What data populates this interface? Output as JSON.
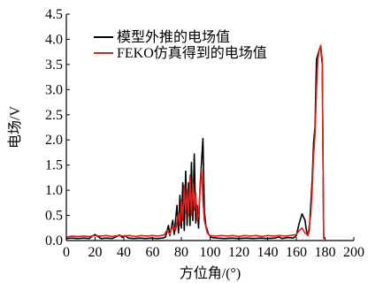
{
  "chart_data": {
    "type": "line",
    "title": "",
    "xlabel": "方位角/(°)",
    "ylabel": "电场/V",
    "xlim": [
      0,
      200
    ],
    "ylim": [
      0,
      4.5
    ],
    "x_ticks": [
      0,
      20,
      40,
      60,
      80,
      100,
      120,
      140,
      160,
      180,
      200
    ],
    "y_ticks": [
      0.0,
      0.5,
      1.0,
      1.5,
      2.0,
      2.5,
      3.0,
      3.5,
      4.0,
      4.5
    ],
    "y_tick_labels": [
      "0.0",
      "0.5",
      "1.0",
      "1.5",
      "2.0",
      "2.5",
      "3.0",
      "3.5",
      "4.0",
      "4.5"
    ],
    "grid": false,
    "legend_position": "top-left",
    "series": [
      {
        "name": "模型外推的电场值",
        "color": "#000000",
        "points": [
          [
            0,
            0.04
          ],
          [
            4,
            0.05
          ],
          [
            8,
            0.04
          ],
          [
            12,
            0.05
          ],
          [
            16,
            0.04
          ],
          [
            18,
            0.09
          ],
          [
            20,
            0.12
          ],
          [
            22,
            0.08
          ],
          [
            24,
            0.04
          ],
          [
            28,
            0.05
          ],
          [
            32,
            0.04
          ],
          [
            35,
            0.08
          ],
          [
            37,
            0.11
          ],
          [
            39,
            0.06
          ],
          [
            41,
            0.1
          ],
          [
            43,
            0.05
          ],
          [
            47,
            0.04
          ],
          [
            51,
            0.05
          ],
          [
            55,
            0.04
          ],
          [
            59,
            0.05
          ],
          [
            63,
            0.04
          ],
          [
            67,
            0.05
          ],
          [
            69,
            0.07
          ],
          [
            71,
            0.3
          ],
          [
            72,
            0.1
          ],
          [
            74,
            0.4
          ],
          [
            75,
            0.12
          ],
          [
            77,
            0.7
          ],
          [
            78,
            0.15
          ],
          [
            79,
            0.9
          ],
          [
            80,
            0.25
          ],
          [
            81,
            1.15
          ],
          [
            82,
            0.2
          ],
          [
            83,
            1.38
          ],
          [
            84,
            0.3
          ],
          [
            85,
            1.15
          ],
          [
            86,
            0.3
          ],
          [
            87,
            1.55
          ],
          [
            88,
            0.4
          ],
          [
            89,
            1.72
          ],
          [
            90,
            0.35
          ],
          [
            91,
            0.7
          ],
          [
            92,
            0.25
          ],
          [
            93,
            1.05
          ],
          [
            95,
            2.03
          ],
          [
            96,
            0.6
          ],
          [
            97,
            0.3
          ],
          [
            99,
            0.12
          ],
          [
            101,
            0.06
          ],
          [
            105,
            0.05
          ],
          [
            110,
            0.04
          ],
          [
            115,
            0.05
          ],
          [
            120,
            0.04
          ],
          [
            125,
            0.05
          ],
          [
            130,
            0.04
          ],
          [
            135,
            0.05
          ],
          [
            140,
            0.04
          ],
          [
            145,
            0.05
          ],
          [
            148,
            0.07
          ],
          [
            150,
            0.04
          ],
          [
            154,
            0.06
          ],
          [
            158,
            0.05
          ],
          [
            160,
            0.1
          ],
          [
            162,
            0.35
          ],
          [
            164,
            0.53
          ],
          [
            166,
            0.4
          ],
          [
            167,
            0.2
          ],
          [
            168,
            0.1
          ],
          [
            169,
            0.2
          ],
          [
            171,
            1.2
          ],
          [
            172,
            1.95
          ],
          [
            173,
            2.25
          ],
          [
            174,
            3.6
          ],
          [
            175,
            3.7
          ],
          [
            176,
            3.8
          ],
          [
            177,
            3.83
          ],
          [
            178,
            3.5
          ],
          [
            179,
            0.03
          ]
        ]
      },
      {
        "name": "FEKO仿真得到的电场值",
        "color": "#e0201c",
        "points": [
          [
            0,
            0.07
          ],
          [
            4,
            0.09
          ],
          [
            8,
            0.08
          ],
          [
            12,
            0.09
          ],
          [
            16,
            0.08
          ],
          [
            20,
            0.1
          ],
          [
            24,
            0.09
          ],
          [
            28,
            0.1
          ],
          [
            32,
            0.08
          ],
          [
            36,
            0.1
          ],
          [
            40,
            0.09
          ],
          [
            44,
            0.1
          ],
          [
            48,
            0.08
          ],
          [
            52,
            0.1
          ],
          [
            56,
            0.09
          ],
          [
            60,
            0.1
          ],
          [
            64,
            0.09
          ],
          [
            68,
            0.11
          ],
          [
            70,
            0.2
          ],
          [
            72,
            0.12
          ],
          [
            74,
            0.3
          ],
          [
            76,
            0.2
          ],
          [
            78,
            0.55
          ],
          [
            79,
            0.3
          ],
          [
            80,
            0.8
          ],
          [
            81,
            0.4
          ],
          [
            82,
            1.1
          ],
          [
            83,
            0.55
          ],
          [
            84,
            1.0
          ],
          [
            85,
            0.5
          ],
          [
            86,
            1.3
          ],
          [
            87,
            0.5
          ],
          [
            88,
            1.15
          ],
          [
            89,
            0.6
          ],
          [
            90,
            0.95
          ],
          [
            91,
            0.4
          ],
          [
            92,
            0.5
          ],
          [
            93,
            1.0
          ],
          [
            94,
            1.42
          ],
          [
            95,
            0.8
          ],
          [
            96,
            0.4
          ],
          [
            98,
            0.15
          ],
          [
            100,
            0.1
          ],
          [
            104,
            0.09
          ],
          [
            108,
            0.1
          ],
          [
            112,
            0.09
          ],
          [
            116,
            0.1
          ],
          [
            120,
            0.08
          ],
          [
            124,
            0.1
          ],
          [
            128,
            0.09
          ],
          [
            132,
            0.1
          ],
          [
            136,
            0.08
          ],
          [
            140,
            0.1
          ],
          [
            144,
            0.09
          ],
          [
            148,
            0.1
          ],
          [
            152,
            0.09
          ],
          [
            156,
            0.1
          ],
          [
            160,
            0.12
          ],
          [
            162,
            0.2
          ],
          [
            164,
            0.25
          ],
          [
            166,
            0.15
          ],
          [
            168,
            0.1
          ],
          [
            170,
            0.5
          ],
          [
            171,
            1.0
          ],
          [
            172,
            1.7
          ],
          [
            173,
            2.1
          ],
          [
            174,
            3.0
          ],
          [
            175,
            3.6
          ],
          [
            176,
            3.8
          ],
          [
            177,
            3.88
          ],
          [
            178,
            3.6
          ],
          [
            179,
            0.03
          ]
        ]
      }
    ]
  }
}
